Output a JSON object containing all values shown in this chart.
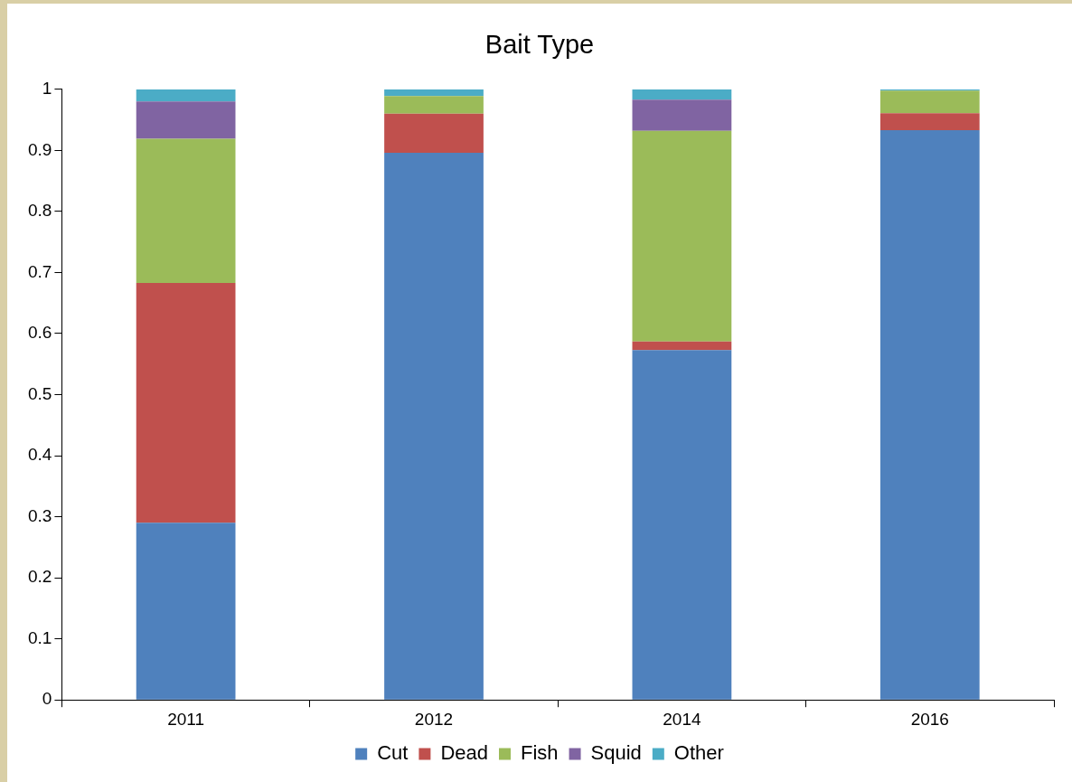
{
  "chart_data": {
    "type": "bar",
    "title": "Bait Type",
    "stacked": true,
    "legend": "bottom",
    "grid": false,
    "categories": [
      "2011",
      "2012",
      "2014",
      "2016"
    ],
    "series": [
      {
        "name": "Cut",
        "color": "#4f81bd",
        "values": [
          0.29,
          0.896,
          0.573,
          0.933
        ]
      },
      {
        "name": "Dead",
        "color": "#c0504d",
        "values": [
          0.393,
          0.064,
          0.014,
          0.028
        ]
      },
      {
        "name": "Fish",
        "color": "#9bbb59",
        "values": [
          0.236,
          0.029,
          0.345,
          0.037
        ]
      },
      {
        "name": "Squid",
        "color": "#8064a2",
        "values": [
          0.061,
          0,
          0.051,
          0
        ]
      },
      {
        "name": "Other",
        "color": "#4bacc6",
        "values": [
          0.02,
          0.011,
          0.017,
          0.002
        ]
      }
    ],
    "ylim": [
      0,
      1
    ],
    "yticks": [
      0,
      0.1,
      0.2,
      0.3,
      0.4,
      0.5,
      0.6,
      0.7,
      0.8,
      0.9,
      1
    ]
  }
}
